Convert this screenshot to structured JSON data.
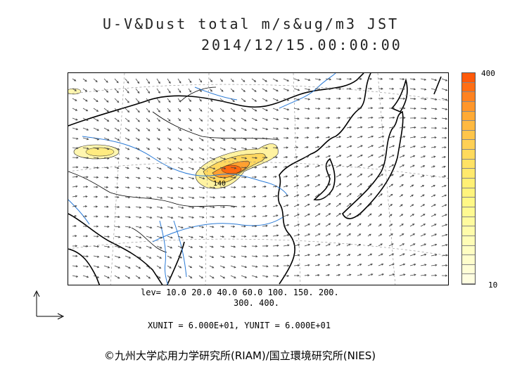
{
  "title": {
    "line1": "U-V&Dust total m/s&ug/m3 JST",
    "line2": "2014/12/15.00:00:00"
  },
  "colorbar": {
    "max_label": "400",
    "min_label": "10",
    "colors": [
      "#ff5a0a",
      "#ff6e14",
      "#ff8220",
      "#ff962a",
      "#ffaa35",
      "#ffb940",
      "#ffc54a",
      "#ffd055",
      "#ffda5c",
      "#ffe264",
      "#ffe96c",
      "#fff074",
      "#fff47c",
      "#fff886",
      "#fffa92",
      "#fffb9e",
      "#fffcaa",
      "#fffdb6",
      "#fffec2",
      "#fffecc",
      "#fffed6",
      "#fffee0"
    ]
  },
  "levels": {
    "line1": "lev= 10.0 20.0 40.0 60.0 100. 150. 200.",
    "line2": "300. 400."
  },
  "units": "XUNIT = 6.000E+01, YUNIT = 6.000E+01",
  "contour_label": "140",
  "credit": "©九州大学応用力学研究所(RIAM)/国立環境研究所(NIES)",
  "colors": {
    "coastline": "#000000",
    "river": "#2a7ad6",
    "wind_arrow": "#444444"
  }
}
